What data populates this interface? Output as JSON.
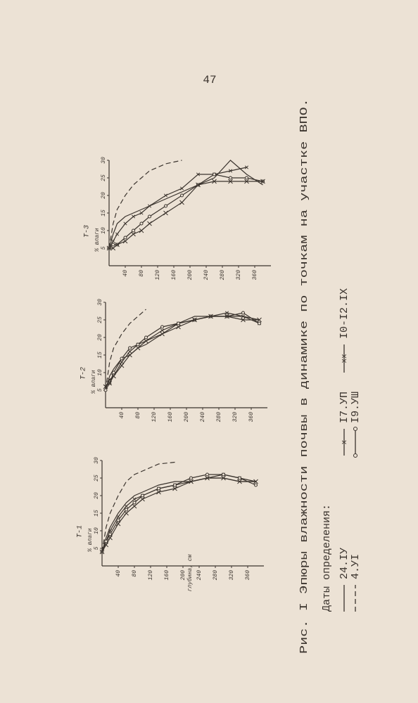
{
  "page_number": "47",
  "caption": "Рис. I Эпюры влажности почвы в динамике по точкам на участке ВПО.",
  "x_axis_label": "глубина, см",
  "legend": {
    "title": "Даты определения:",
    "items": [
      "24.IУ",
      "4.УI",
      "I7.УП",
      "I9.УШ",
      "I0-I2.IX"
    ]
  },
  "panels": [
    {
      "label": "Т-1",
      "y_axis_label": "% влаги",
      "xlim": [
        0,
        400
      ],
      "ylim": [
        0,
        30
      ],
      "x_ticks": [
        40,
        80,
        120,
        160,
        200,
        240,
        280,
        320,
        360
      ],
      "y_ticks": [
        5,
        10,
        15,
        20,
        25,
        30
      ],
      "depths": [
        0,
        10,
        20,
        40,
        60,
        80,
        100,
        140,
        180,
        220,
        260,
        300,
        340,
        380
      ],
      "series": [
        [
          4,
          8,
          11,
          15,
          18,
          20,
          21,
          23,
          24,
          24,
          25,
          25,
          24,
          24
        ],
        [
          4,
          11,
          15,
          20,
          24,
          26,
          27,
          29,
          29.5,
          null,
          null,
          null,
          null,
          null
        ],
        [
          4,
          7,
          10,
          14,
          17,
          19,
          20,
          22,
          23,
          24,
          25,
          26,
          25,
          24
        ],
        [
          4,
          7,
          9,
          13,
          16,
          18,
          20,
          22,
          23,
          25,
          26,
          26,
          25,
          23
        ],
        [
          4,
          6,
          8,
          12,
          15,
          17,
          19,
          21,
          22,
          24,
          25,
          25,
          24,
          24
        ]
      ]
    },
    {
      "label": "Т-2",
      "y_axis_label": "% влаги",
      "xlim": [
        0,
        400
      ],
      "ylim": [
        0,
        30
      ],
      "x_ticks": [
        40,
        80,
        120,
        160,
        200,
        240,
        280,
        320,
        360
      ],
      "y_ticks": [
        5,
        10,
        15,
        20,
        25,
        30
      ],
      "depths": [
        0,
        10,
        20,
        40,
        60,
        80,
        100,
        140,
        180,
        220,
        260,
        300,
        340,
        380
      ],
      "series": [
        [
          5,
          9,
          11,
          14,
          15,
          17,
          18,
          21,
          24,
          26,
          26,
          26,
          26,
          25
        ],
        [
          5,
          13,
          17,
          21,
          24,
          26,
          28,
          null,
          null,
          null,
          null,
          null,
          null,
          null
        ],
        [
          6,
          8,
          9,
          13,
          16,
          18,
          19,
          22,
          24,
          25,
          26,
          27,
          26,
          24
        ],
        [
          5,
          7,
          10,
          14,
          17,
          18,
          20,
          23,
          24,
          25,
          26,
          26,
          27,
          24
        ],
        [
          6,
          7,
          9,
          12,
          15,
          17,
          19,
          21,
          23,
          25,
          26,
          26,
          25,
          25
        ]
      ]
    },
    {
      "label": "Т-3",
      "y_axis_label": "% влаги",
      "xlim": [
        0,
        400
      ],
      "ylim": [
        0,
        30
      ],
      "x_ticks": [
        40,
        80,
        120,
        160,
        200,
        240,
        280,
        320,
        360
      ],
      "y_ticks": [
        5,
        10,
        15,
        20,
        25,
        30
      ],
      "depths": [
        0,
        10,
        20,
        40,
        60,
        80,
        100,
        140,
        180,
        220,
        260,
        300,
        340,
        380
      ],
      "series": [
        [
          5,
          9,
          12,
          14,
          15,
          16,
          17,
          19,
          21,
          23,
          25,
          30,
          26,
          23
        ],
        [
          5,
          12,
          16,
          20,
          23,
          25,
          27,
          29,
          30,
          null,
          null,
          null,
          null,
          null
        ],
        [
          5,
          7,
          9,
          12,
          14,
          15,
          17,
          20,
          22,
          26,
          26,
          27,
          28,
          null
        ],
        [
          5,
          6,
          6,
          8,
          10,
          12,
          14,
          17,
          20,
          23,
          26,
          25,
          25,
          24
        ],
        [
          5,
          5,
          6,
          7,
          9,
          10,
          12,
          15,
          18,
          23,
          24,
          24,
          24,
          24
        ]
      ]
    }
  ]
}
